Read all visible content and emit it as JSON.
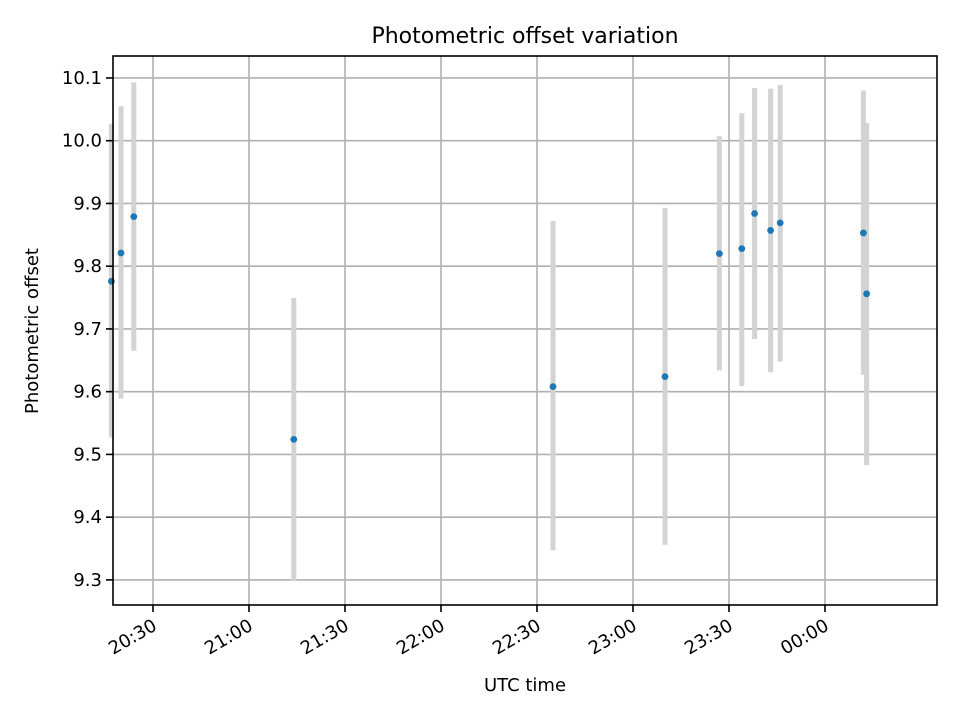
{
  "chart_data": {
    "type": "scatter",
    "title": "Photometric offset variation",
    "xlabel": "UTC time",
    "ylabel": "Photometric offset",
    "xlim": [
      "20:17:30",
      "24:35:00"
    ],
    "ylim": [
      9.26,
      10.135
    ],
    "x_ticks": [
      {
        "value": "20:30",
        "label": "20:30"
      },
      {
        "value": "21:00",
        "label": "21:00"
      },
      {
        "value": "21:30",
        "label": "21:30"
      },
      {
        "value": "22:00",
        "label": "22:00"
      },
      {
        "value": "22:30",
        "label": "22:30"
      },
      {
        "value": "23:00",
        "label": "23:00"
      },
      {
        "value": "23:30",
        "label": "23:30"
      },
      {
        "value": "24:00",
        "label": "00:00"
      }
    ],
    "y_ticks": [
      9.3,
      9.4,
      9.5,
      9.6,
      9.7,
      9.8,
      9.9,
      10.0,
      10.1
    ],
    "y_tick_labels": [
      "9.3",
      "9.4",
      "9.5",
      "9.6",
      "9.7",
      "9.8",
      "9.9",
      "10.0",
      "10.1"
    ],
    "grid": true,
    "x_tick_rotation_deg": 30,
    "marker_color": "#1f77b4",
    "errorbar_color": "#d3d3d3",
    "points": [
      {
        "x": "20:17",
        "y": 9.776,
        "low": 9.527,
        "high": 10.027
      },
      {
        "x": "20:20",
        "y": 9.821,
        "low": 9.589,
        "high": 10.055
      },
      {
        "x": "20:24",
        "y": 9.879,
        "low": 9.665,
        "high": 10.093
      },
      {
        "x": "21:14",
        "y": 9.524,
        "low": 9.298,
        "high": 9.749
      },
      {
        "x": "22:35",
        "y": 9.608,
        "low": 9.347,
        "high": 9.872
      },
      {
        "x": "23:10",
        "y": 9.624,
        "low": 9.356,
        "high": 9.893
      },
      {
        "x": "23:27",
        "y": 9.82,
        "low": 9.634,
        "high": 10.007
      },
      {
        "x": "23:34",
        "y": 9.828,
        "low": 9.609,
        "high": 10.044
      },
      {
        "x": "23:38",
        "y": 9.884,
        "low": 9.684,
        "high": 10.084
      },
      {
        "x": "23:43",
        "y": 9.857,
        "low": 9.631,
        "high": 10.083
      },
      {
        "x": "23:46",
        "y": 9.869,
        "low": 9.648,
        "high": 10.089
      },
      {
        "x": "24:12",
        "y": 9.853,
        "low": 9.627,
        "high": 10.08
      },
      {
        "x": "24:13",
        "y": 9.756,
        "low": 9.483,
        "high": 10.028
      }
    ]
  }
}
